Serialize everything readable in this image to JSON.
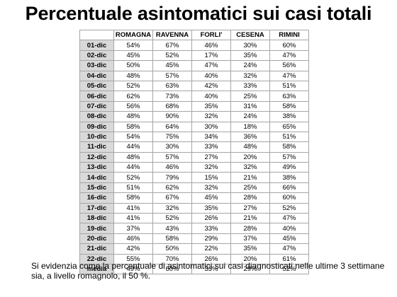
{
  "title": "Percentuale asintomatici sui casi totali",
  "table": {
    "columns": [
      "ROMAGNA",
      "RAVENNA",
      "FORLI'",
      "CESENA",
      "RIMINI"
    ],
    "rows": [
      {
        "label": "01-dic",
        "values": [
          "54%",
          "67%",
          "46%",
          "30%",
          "60%"
        ]
      },
      {
        "label": "02-dic",
        "values": [
          "45%",
          "52%",
          "17%",
          "35%",
          "47%"
        ]
      },
      {
        "label": "03-dic",
        "values": [
          "50%",
          "45%",
          "47%",
          "24%",
          "56%"
        ]
      },
      {
        "label": "04-dic",
        "values": [
          "48%",
          "57%",
          "40%",
          "32%",
          "47%"
        ]
      },
      {
        "label": "05-dic",
        "values": [
          "52%",
          "63%",
          "42%",
          "33%",
          "51%"
        ]
      },
      {
        "label": "06-dic",
        "values": [
          "62%",
          "73%",
          "40%",
          "25%",
          "63%"
        ]
      },
      {
        "label": "07-dic",
        "values": [
          "56%",
          "68%",
          "35%",
          "31%",
          "58%"
        ]
      },
      {
        "label": "08-dic",
        "values": [
          "48%",
          "90%",
          "32%",
          "24%",
          "38%"
        ]
      },
      {
        "label": "09-dic",
        "values": [
          "58%",
          "64%",
          "30%",
          "18%",
          "65%"
        ]
      },
      {
        "label": "10-dic",
        "values": [
          "54%",
          "75%",
          "34%",
          "36%",
          "51%"
        ]
      },
      {
        "label": "11-dic",
        "values": [
          "44%",
          "30%",
          "33%",
          "48%",
          "58%"
        ]
      },
      {
        "label": "12-dic",
        "values": [
          "48%",
          "57%",
          "27%",
          "20%",
          "57%"
        ]
      },
      {
        "label": "13-dic",
        "values": [
          "44%",
          "46%",
          "32%",
          "32%",
          "49%"
        ]
      },
      {
        "label": "14-dic",
        "values": [
          "52%",
          "79%",
          "15%",
          "21%",
          "38%"
        ]
      },
      {
        "label": "15-dic",
        "values": [
          "51%",
          "62%",
          "32%",
          "25%",
          "66%"
        ]
      },
      {
        "label": "16-dic",
        "values": [
          "58%",
          "67%",
          "45%",
          "28%",
          "60%"
        ]
      },
      {
        "label": "17-dic",
        "values": [
          "41%",
          "32%",
          "35%",
          "27%",
          "52%"
        ]
      },
      {
        "label": "18-dic",
        "values": [
          "41%",
          "52%",
          "26%",
          "21%",
          "47%"
        ]
      },
      {
        "label": "19-dic",
        "values": [
          "37%",
          "43%",
          "33%",
          "28%",
          "40%"
        ]
      },
      {
        "label": "20-dic",
        "values": [
          "46%",
          "58%",
          "29%",
          "37%",
          "45%"
        ]
      },
      {
        "label": "21-dic",
        "values": [
          "42%",
          "50%",
          "22%",
          "35%",
          "47%"
        ]
      },
      {
        "label": "22-dic",
        "values": [
          "55%",
          "70%",
          "26%",
          "20%",
          "61%"
        ]
      },
      {
        "label": "media",
        "values": [
          "49%",
          "60%",
          "33%",
          "29%",
          "52%"
        ]
      }
    ]
  },
  "note": "Si evidenzia come la percentuale di asintomatici sui casi diagnosticati nelle ultime 3 settimane sia, a livello romagnolo, il  50 %."
}
